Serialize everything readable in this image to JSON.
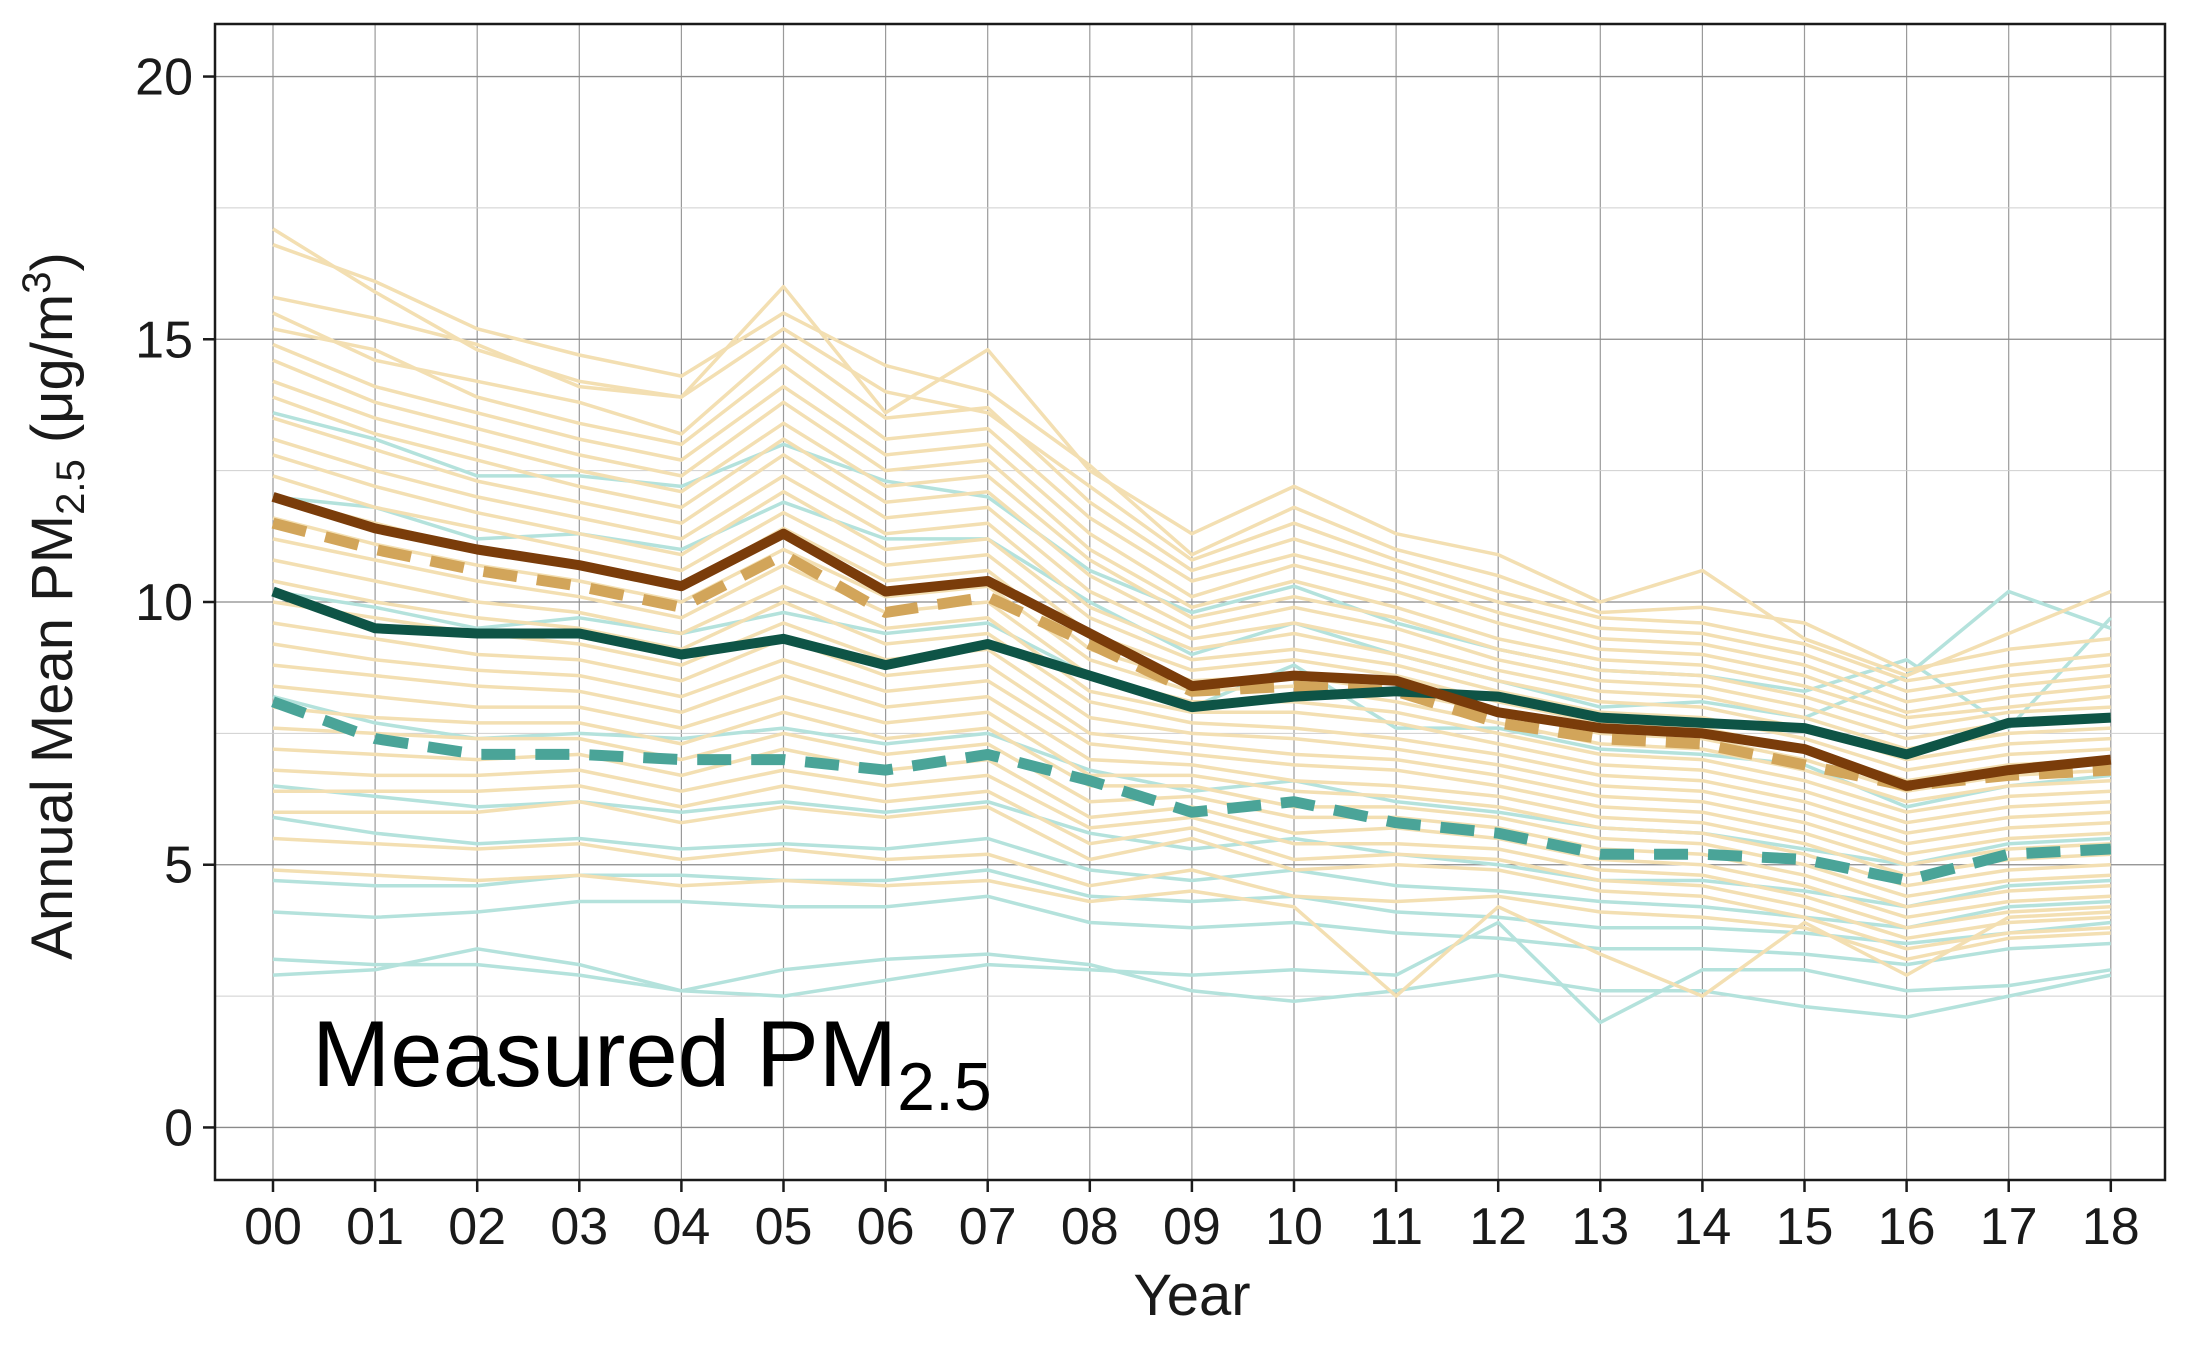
{
  "chart_data": {
    "type": "line",
    "annotation": {
      "main": "Measured PM",
      "sub": "2.5"
    },
    "xlabel": "Year",
    "ylabel": {
      "prefix": "Annual Mean PM",
      "sub": "2.5",
      "unit": " (μg/m",
      "sup": "3",
      "close": ")"
    },
    "categories": [
      "00",
      "01",
      "02",
      "03",
      "04",
      "05",
      "06",
      "07",
      "08",
      "09",
      "10",
      "11",
      "12",
      "13",
      "14",
      "15",
      "16",
      "17",
      "18"
    ],
    "yticks": [
      "0",
      "5",
      "10",
      "15",
      "20"
    ],
    "ylim": [
      -1,
      21
    ],
    "grid": true,
    "colors": {
      "background_beige": "#f3dfb2",
      "background_teal": "#b4e2dc",
      "brown_solid": "#7a3c0a",
      "tan_dashed": "#d2a55a",
      "dark_teal_solid": "#0e5446",
      "teal_dashed": "#4aa498"
    },
    "series": [
      {
        "style": "brown_solid",
        "values": [
          12.0,
          11.4,
          11.0,
          10.7,
          10.3,
          11.3,
          10.2,
          10.4,
          9.4,
          8.4,
          8.6,
          8.5,
          7.9,
          7.6,
          7.5,
          7.2,
          6.5,
          6.8,
          7.0
        ]
      },
      {
        "style": "tan_dashed",
        "values": [
          11.5,
          11.0,
          10.6,
          10.3,
          9.9,
          10.9,
          9.8,
          10.1,
          9.2,
          8.3,
          8.4,
          8.3,
          7.7,
          7.4,
          7.3,
          6.9,
          6.5,
          6.7,
          6.8
        ]
      },
      {
        "style": "dark_teal_solid",
        "values": [
          10.2,
          9.5,
          9.4,
          9.4,
          9.0,
          9.3,
          8.8,
          9.2,
          8.6,
          8.0,
          8.2,
          8.3,
          8.2,
          7.8,
          7.7,
          7.6,
          7.1,
          7.7,
          7.8
        ]
      },
      {
        "style": "teal_dashed",
        "values": [
          8.1,
          7.4,
          7.1,
          7.1,
          7.0,
          7.0,
          6.8,
          7.1,
          6.6,
          6.0,
          6.2,
          5.8,
          5.6,
          5.2,
          5.2,
          5.1,
          4.7,
          5.2,
          5.3
        ]
      }
    ],
    "background_series_beige": [
      [
        17.1,
        15.9,
        14.8,
        14.2,
        13.9,
        16.0,
        13.6,
        14.8,
        12.5,
        11.3,
        12.2,
        11.3,
        10.9,
        10.0,
        10.6,
        9.3,
        8.6,
        9.4,
        10.2
      ],
      [
        16.8,
        16.1,
        15.2,
        14.7,
        14.3,
        15.5,
        14.5,
        14.0,
        12.6,
        10.9,
        11.8,
        11.0,
        10.5,
        9.8,
        9.9,
        9.6,
        8.7,
        9.1,
        9.3
      ],
      [
        15.8,
        15.4,
        14.9,
        14.1,
        13.9,
        15.2,
        14.0,
        13.6,
        12.2,
        10.8,
        11.5,
        10.8,
        10.2,
        9.7,
        9.6,
        9.2,
        8.5,
        8.8,
        9.0
      ],
      [
        15.5,
        14.6,
        14.2,
        13.8,
        13.2,
        14.9,
        13.5,
        13.7,
        11.9,
        10.6,
        11.2,
        10.6,
        10.0,
        9.5,
        9.4,
        9.0,
        8.3,
        8.6,
        8.8
      ],
      [
        15.2,
        14.8,
        13.9,
        13.4,
        13.0,
        14.5,
        13.1,
        13.3,
        11.6,
        10.4,
        10.9,
        10.4,
        9.8,
        9.3,
        9.2,
        8.8,
        8.1,
        8.4,
        8.6
      ],
      [
        14.9,
        14.1,
        13.6,
        13.1,
        12.7,
        14.1,
        12.8,
        13.0,
        11.3,
        10.1,
        10.7,
        10.2,
        9.6,
        9.1,
        9.0,
        8.6,
        7.9,
        8.2,
        8.4
      ],
      [
        14.6,
        13.8,
        13.3,
        12.8,
        12.4,
        13.8,
        12.5,
        12.7,
        11.0,
        9.9,
        10.4,
        9.9,
        9.3,
        8.9,
        8.8,
        8.4,
        7.8,
        8.0,
        8.2
      ],
      [
        14.2,
        13.5,
        13.0,
        12.5,
        12.1,
        13.4,
        12.2,
        12.4,
        10.8,
        9.7,
        10.1,
        9.7,
        9.1,
        8.7,
        8.6,
        8.2,
        7.6,
        7.9,
        8.0
      ],
      [
        13.9,
        13.2,
        12.7,
        12.2,
        11.8,
        13.1,
        11.9,
        12.1,
        10.5,
        9.5,
        9.9,
        9.5,
        8.9,
        8.5,
        8.4,
        8.0,
        7.4,
        7.7,
        7.8
      ],
      [
        13.5,
        12.9,
        12.3,
        11.9,
        11.5,
        12.8,
        11.6,
        11.8,
        10.2,
        9.3,
        9.6,
        9.2,
        8.7,
        8.3,
        8.2,
        7.8,
        7.2,
        7.5,
        7.6
      ],
      [
        13.1,
        12.5,
        12.0,
        11.6,
        11.2,
        12.4,
        11.3,
        11.5,
        9.9,
        9.1,
        9.4,
        9.0,
        8.5,
        8.1,
        8.0,
        7.6,
        7.0,
        7.3,
        7.4
      ],
      [
        12.8,
        12.2,
        11.7,
        11.3,
        10.9,
        12.1,
        11.0,
        11.2,
        9.7,
        8.9,
        9.1,
        8.8,
        8.3,
        7.9,
        7.8,
        7.4,
        6.8,
        7.1,
        7.2
      ],
      [
        12.4,
        11.8,
        11.4,
        11.0,
        10.6,
        11.7,
        10.7,
        10.9,
        9.4,
        8.7,
        8.9,
        8.6,
        8.1,
        7.7,
        7.6,
        7.2,
        6.6,
        6.9,
        7.0
      ],
      [
        12.0,
        11.5,
        11.0,
        10.7,
        10.3,
        11.4,
        10.4,
        10.6,
        9.1,
        8.5,
        8.6,
        8.3,
        7.9,
        7.5,
        7.4,
        7.0,
        6.4,
        6.7,
        6.8
      ],
      [
        11.6,
        11.1,
        10.7,
        10.4,
        10.0,
        11.0,
        10.1,
        10.3,
        8.9,
        8.3,
        8.4,
        8.1,
        7.7,
        7.3,
        7.2,
        6.8,
        6.2,
        6.5,
        6.6
      ],
      [
        11.2,
        10.8,
        10.4,
        10.1,
        9.7,
        10.7,
        9.8,
        10.0,
        8.6,
        8.1,
        8.1,
        7.9,
        7.5,
        7.1,
        7.0,
        6.6,
        6.0,
        6.3,
        6.4
      ],
      [
        10.8,
        10.4,
        10.0,
        9.8,
        9.4,
        10.3,
        9.5,
        9.7,
        8.3,
        7.9,
        7.9,
        7.7,
        7.3,
        6.9,
        6.8,
        6.4,
        5.8,
        6.1,
        6.2
      ],
      [
        10.4,
        10.0,
        9.7,
        9.5,
        9.1,
        10.0,
        9.2,
        9.4,
        8.1,
        7.7,
        7.6,
        7.4,
        7.1,
        6.7,
        6.6,
        6.2,
        5.6,
        5.9,
        6.0
      ],
      [
        10.0,
        9.7,
        9.4,
        9.2,
        8.8,
        9.6,
        8.9,
        9.1,
        7.8,
        7.5,
        7.4,
        7.2,
        6.9,
        6.5,
        6.4,
        6.0,
        5.4,
        5.7,
        5.8
      ],
      [
        9.6,
        9.3,
        9.0,
        8.9,
        8.5,
        9.3,
        8.6,
        8.8,
        7.5,
        7.3,
        7.1,
        7.0,
        6.7,
        6.3,
        6.2,
        5.8,
        5.2,
        5.5,
        5.6
      ],
      [
        9.2,
        8.9,
        8.7,
        8.6,
        8.2,
        8.9,
        8.3,
        8.5,
        7.3,
        7.1,
        6.9,
        6.8,
        6.5,
        6.1,
        6.0,
        5.6,
        5.0,
        5.3,
        5.4
      ],
      [
        8.8,
        8.6,
        8.4,
        8.3,
        7.9,
        8.6,
        8.0,
        8.2,
        7.0,
        6.9,
        6.6,
        6.5,
        6.3,
        5.9,
        5.8,
        5.4,
        4.8,
        5.1,
        5.2
      ],
      [
        8.4,
        8.2,
        8.0,
        8.0,
        7.6,
        8.2,
        7.7,
        7.9,
        6.7,
        6.7,
        6.4,
        6.3,
        6.1,
        5.7,
        5.6,
        5.2,
        4.6,
        4.9,
        5.0
      ],
      [
        8.0,
        7.8,
        7.7,
        7.7,
        7.3,
        7.9,
        7.4,
        7.6,
        6.5,
        6.5,
        6.1,
        6.1,
        5.9,
        5.5,
        5.4,
        5.0,
        4.4,
        4.7,
        4.8
      ],
      [
        7.6,
        7.5,
        7.4,
        7.4,
        7.0,
        7.5,
        7.1,
        7.3,
        6.2,
        6.3,
        5.9,
        5.9,
        5.7,
        5.3,
        5.2,
        4.8,
        4.2,
        4.5,
        4.6
      ],
      [
        7.2,
        7.1,
        7.0,
        7.1,
        6.7,
        7.2,
        6.8,
        7.0,
        5.9,
        6.1,
        5.6,
        5.7,
        5.5,
        5.1,
        5.0,
        4.6,
        4.0,
        4.3,
        4.4
      ],
      [
        6.8,
        6.7,
        6.7,
        6.8,
        6.4,
        6.8,
        6.5,
        6.7,
        5.7,
        5.9,
        5.4,
        5.4,
        5.3,
        4.9,
        4.8,
        4.4,
        3.8,
        4.1,
        4.2
      ],
      [
        6.4,
        6.4,
        6.4,
        6.5,
        6.1,
        6.5,
        6.2,
        6.4,
        5.4,
        5.7,
        5.1,
        5.2,
        5.1,
        4.7,
        4.6,
        4.2,
        3.6,
        3.9,
        4.0
      ],
      [
        6.0,
        6.0,
        6.0,
        6.2,
        5.8,
        6.1,
        5.9,
        6.1,
        5.1,
        5.5,
        4.9,
        5.0,
        4.9,
        4.5,
        4.4,
        4.0,
        3.4,
        3.7,
        3.8
      ],
      [
        5.5,
        5.4,
        5.3,
        5.4,
        5.1,
        5.3,
        5.1,
        5.2,
        4.6,
        4.9,
        4.4,
        4.3,
        4.4,
        4.1,
        4.0,
        3.8,
        3.2,
        3.6,
        3.7
      ],
      [
        4.9,
        4.8,
        4.7,
        4.8,
        4.6,
        4.7,
        4.6,
        4.7,
        4.3,
        4.5,
        4.2,
        2.5,
        4.2,
        3.3,
        2.5,
        3.9,
        2.9,
        4.0,
        4.1
      ]
    ],
    "background_series_teal": [
      [
        13.6,
        13.1,
        12.4,
        12.4,
        12.2,
        13.0,
        12.3,
        12.0,
        10.6,
        9.8,
        10.3,
        9.6,
        9.1,
        8.7,
        8.6,
        8.3,
        8.9,
        7.6,
        9.7
      ],
      [
        12.0,
        11.8,
        11.2,
        11.3,
        11.0,
        11.9,
        11.2,
        11.2,
        10.0,
        9.0,
        9.6,
        9.0,
        8.5,
        8.0,
        8.1,
        7.8,
        8.6,
        10.2,
        9.5
      ],
      [
        10.2,
        9.9,
        9.5,
        9.7,
        9.4,
        9.8,
        9.4,
        9.6,
        8.6,
        8.0,
        8.8,
        7.6,
        7.6,
        7.2,
        7.1,
        6.9,
        6.1,
        6.5,
        6.7
      ],
      [
        8.2,
        7.7,
        7.4,
        7.5,
        7.4,
        7.6,
        7.3,
        7.5,
        6.8,
        6.4,
        6.6,
        6.2,
        6.0,
        5.7,
        5.6,
        5.3,
        5.0,
        5.4,
        5.5
      ],
      [
        6.5,
        6.3,
        6.1,
        6.2,
        6.0,
        6.2,
        6.0,
        6.2,
        5.6,
        5.3,
        5.5,
        5.2,
        5.0,
        4.7,
        4.7,
        4.5,
        4.2,
        4.6,
        4.7
      ],
      [
        5.9,
        5.6,
        5.4,
        5.5,
        5.3,
        5.4,
        5.3,
        5.5,
        4.9,
        4.7,
        4.9,
        4.6,
        4.5,
        4.3,
        4.2,
        4.0,
        3.8,
        4.2,
        4.3
      ],
      [
        4.7,
        4.6,
        4.6,
        4.8,
        4.8,
        4.7,
        4.7,
        4.9,
        4.4,
        4.3,
        4.4,
        4.1,
        4.0,
        3.8,
        3.8,
        3.7,
        3.5,
        3.7,
        3.9
      ],
      [
        4.1,
        4.0,
        4.1,
        4.3,
        4.3,
        4.2,
        4.2,
        4.4,
        3.9,
        3.8,
        3.9,
        3.7,
        3.6,
        3.4,
        3.4,
        3.3,
        3.1,
        3.4,
        3.5
      ],
      [
        3.2,
        3.1,
        3.1,
        2.9,
        2.6,
        2.5,
        2.8,
        3.1,
        3.0,
        2.9,
        3.0,
        2.9,
        3.9,
        2.0,
        3.0,
        3.0,
        2.6,
        2.7,
        3.0
      ],
      [
        2.9,
        3.0,
        3.4,
        3.1,
        2.6,
        3.0,
        3.2,
        3.3,
        3.1,
        2.6,
        2.4,
        2.6,
        2.9,
        2.6,
        2.6,
        2.3,
        2.1,
        2.5,
        2.9
      ]
    ]
  }
}
